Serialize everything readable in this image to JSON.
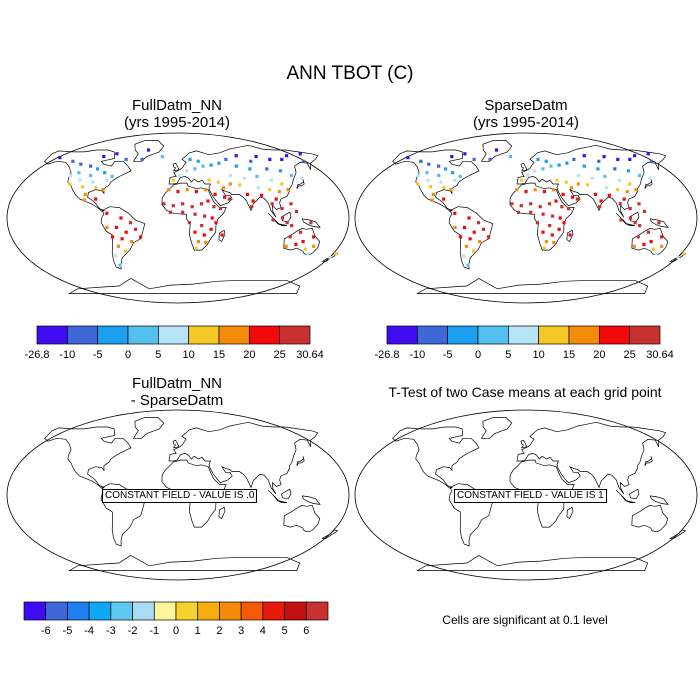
{
  "title": "ANN TBOT (C)",
  "panels": [
    {
      "id": "full",
      "title_lines": [
        "FullDatm_NN",
        "(yrs 1995-2014)"
      ]
    },
    {
      "id": "sparse",
      "title_lines": [
        "SparseDatm",
        "(yrs 1995-2014)"
      ]
    },
    {
      "id": "diff",
      "title_lines": [
        "FullDatm_NN",
        "- SparseDatm"
      ],
      "field_label": "CONSTANT FIELD - VALUE IS .0"
    },
    {
      "id": "ttest",
      "title_lines": [
        "T-Test of two Case means at each grid point"
      ],
      "field_label": "CONSTANT FIELD - VALUE IS 1"
    }
  ],
  "colorbar_temp": {
    "colors": [
      "#3f0cf2",
      "#3e68d8",
      "#1d9ff0",
      "#55c0f0",
      "#b6e3f5",
      "#f5c826",
      "#f48c0a",
      "#f20a0a",
      "#c93030"
    ],
    "labels": [
      "-26.8",
      "-10",
      "-5",
      "0",
      "5",
      "10",
      "15",
      "20",
      "25",
      "30.64"
    ]
  },
  "colorbar_diff": {
    "colors": [
      "#3f0cf2",
      "#3e68d8",
      "#1d7ff0",
      "#0fa8f5",
      "#5fc8f2",
      "#a8dcf5",
      "#fdf59c",
      "#f7d22c",
      "#f6ad10",
      "#f48a0a",
      "#f25a0a",
      "#e61a0a",
      "#c41010",
      "#c93030"
    ],
    "labels": [
      "-6",
      "-5",
      "-4",
      "-3",
      "-2",
      "-1",
      "0",
      "1",
      "2",
      "3",
      "4",
      "5",
      "6"
    ]
  },
  "significance_note": "Cells are significant at 0.1 level",
  "stations": [
    {
      "lon": -150,
      "lat": 64,
      "c": 0
    },
    {
      "lon": -130,
      "lat": 60,
      "c": 1
    },
    {
      "lon": -118,
      "lat": 57,
      "c": 1
    },
    {
      "lon": -105,
      "lat": 55,
      "c": 1
    },
    {
      "lon": -95,
      "lat": 52,
      "c": 2
    },
    {
      "lon": -85,
      "lat": 48,
      "c": 2
    },
    {
      "lon": -100,
      "lat": 45,
      "c": 3
    },
    {
      "lon": -115,
      "lat": 48,
      "c": 3
    },
    {
      "lon": -123,
      "lat": 45,
      "c": 4
    },
    {
      "lon": -110,
      "lat": 40,
      "c": 4
    },
    {
      "lon": -95,
      "lat": 38,
      "c": 4
    },
    {
      "lon": -80,
      "lat": 40,
      "c": 4
    },
    {
      "lon": -75,
      "lat": 44,
      "c": 3
    },
    {
      "lon": -120,
      "lat": 36,
      "c": 5
    },
    {
      "lon": -105,
      "lat": 33,
      "c": 5
    },
    {
      "lon": -90,
      "lat": 32,
      "c": 5
    },
    {
      "lon": -82,
      "lat": 30,
      "c": 6
    },
    {
      "lon": -100,
      "lat": 25,
      "c": 6
    },
    {
      "lon": -80,
      "lat": 68,
      "c": 0
    },
    {
      "lon": -65,
      "lat": 62,
      "c": 1
    },
    {
      "lon": -95,
      "lat": 65,
      "c": 0
    },
    {
      "lon": -88,
      "lat": 20,
      "c": 7
    },
    {
      "lon": -100,
      "lat": 19,
      "c": 6
    },
    {
      "lon": -75,
      "lat": 5,
      "c": 7
    },
    {
      "lon": -60,
      "lat": 0,
      "c": 7
    },
    {
      "lon": -50,
      "lat": -5,
      "c": 8
    },
    {
      "lon": -65,
      "lat": -10,
      "c": 7
    },
    {
      "lon": -45,
      "lat": -12,
      "c": 8
    },
    {
      "lon": -55,
      "lat": -15,
      "c": 7
    },
    {
      "lon": -40,
      "lat": -20,
      "c": 7
    },
    {
      "lon": -60,
      "lat": -22,
      "c": 7
    },
    {
      "lon": -50,
      "lat": -25,
      "c": 6
    },
    {
      "lon": -65,
      "lat": -30,
      "c": 6
    },
    {
      "lon": -58,
      "lat": -35,
      "c": 5
    },
    {
      "lon": -70,
      "lat": -40,
      "c": 4
    },
    {
      "lon": -70,
      "lat": -20,
      "c": 7
    },
    {
      "lon": -68,
      "lat": -50,
      "c": 3
    },
    {
      "lon": -75,
      "lat": -10,
      "c": 6
    },
    {
      "lon": -20,
      "lat": 65,
      "c": 3
    },
    {
      "lon": -45,
      "lat": 62,
      "c": 1
    },
    {
      "lon": -40,
      "lat": 72,
      "c": 0
    },
    {
      "lon": -5,
      "lat": 40,
      "c": 5
    },
    {
      "lon": 2,
      "lat": 45,
      "c": 4
    },
    {
      "lon": 10,
      "lat": 50,
      "c": 4
    },
    {
      "lon": 20,
      "lat": 52,
      "c": 3
    },
    {
      "lon": 25,
      "lat": 60,
      "c": 2
    },
    {
      "lon": 15,
      "lat": 62,
      "c": 2
    },
    {
      "lon": 30,
      "lat": 55,
      "c": 3
    },
    {
      "lon": 40,
      "lat": 56,
      "c": 2
    },
    {
      "lon": 50,
      "lat": 58,
      "c": 2
    },
    {
      "lon": 60,
      "lat": 62,
      "c": 1
    },
    {
      "lon": 75,
      "lat": 66,
      "c": 0
    },
    {
      "lon": 90,
      "lat": 60,
      "c": 1
    },
    {
      "lon": 100,
      "lat": 65,
      "c": 0
    },
    {
      "lon": 115,
      "lat": 62,
      "c": 0
    },
    {
      "lon": 130,
      "lat": 62,
      "c": 0
    },
    {
      "lon": 140,
      "lat": 66,
      "c": 0
    },
    {
      "lon": 155,
      "lat": 60,
      "c": 1
    },
    {
      "lon": 160,
      "lat": 68,
      "c": 0
    },
    {
      "lon": 70,
      "lat": 55,
      "c": 2
    },
    {
      "lon": 85,
      "lat": 52,
      "c": 2
    },
    {
      "lon": 105,
      "lat": 52,
      "c": 1
    },
    {
      "lon": 120,
      "lat": 50,
      "c": 2
    },
    {
      "lon": 130,
      "lat": 45,
      "c": 3
    },
    {
      "lon": 140,
      "lat": 42,
      "c": 4
    },
    {
      "lon": 60,
      "lat": 45,
      "c": 4
    },
    {
      "lon": 75,
      "lat": 42,
      "c": 4
    },
    {
      "lon": 90,
      "lat": 44,
      "c": 3
    },
    {
      "lon": 105,
      "lat": 40,
      "c": 4
    },
    {
      "lon": 115,
      "lat": 36,
      "c": 5
    },
    {
      "lon": 120,
      "lat": 30,
      "c": 6
    },
    {
      "lon": 110,
      "lat": 28,
      "c": 6
    },
    {
      "lon": 100,
      "lat": 30,
      "c": 5
    },
    {
      "lon": 88,
      "lat": 32,
      "c": 4
    },
    {
      "lon": 45,
      "lat": 38,
      "c": 5
    },
    {
      "lon": 35,
      "lat": 40,
      "c": 5
    },
    {
      "lon": 50,
      "lat": 32,
      "c": 6
    },
    {
      "lon": 58,
      "lat": 36,
      "c": 6
    },
    {
      "lon": 68,
      "lat": 35,
      "c": 5
    },
    {
      "lon": 40,
      "lat": 25,
      "c": 7
    },
    {
      "lon": 50,
      "lat": 22,
      "c": 7
    },
    {
      "lon": 75,
      "lat": 25,
      "c": 7
    },
    {
      "lon": 80,
      "lat": 18,
      "c": 7
    },
    {
      "lon": 78,
      "lat": 12,
      "c": 8
    },
    {
      "lon": 90,
      "lat": 24,
      "c": 7
    },
    {
      "lon": 100,
      "lat": 15,
      "c": 8
    },
    {
      "lon": 105,
      "lat": 20,
      "c": 7
    },
    {
      "lon": 110,
      "lat": 10,
      "c": 8
    },
    {
      "lon": 120,
      "lat": 15,
      "c": 8
    },
    {
      "lon": 125,
      "lat": 7,
      "c": 8
    },
    {
      "lon": 110,
      "lat": 0,
      "c": 8
    },
    {
      "lon": 100,
      "lat": -2,
      "c": 8
    },
    {
      "lon": 115,
      "lat": -5,
      "c": 8
    },
    {
      "lon": 120,
      "lat": -8,
      "c": 8
    },
    {
      "lon": 140,
      "lat": -5,
      "c": 8
    },
    {
      "lon": -10,
      "lat": 30,
      "c": 6
    },
    {
      "lon": 0,
      "lat": 28,
      "c": 7
    },
    {
      "lon": 10,
      "lat": 30,
      "c": 6
    },
    {
      "lon": 20,
      "lat": 28,
      "c": 7
    },
    {
      "lon": 30,
      "lat": 30,
      "c": 6
    },
    {
      "lon": -15,
      "lat": 15,
      "c": 8
    },
    {
      "lon": -5,
      "lat": 13,
      "c": 8
    },
    {
      "lon": 5,
      "lat": 15,
      "c": 8
    },
    {
      "lon": 15,
      "lat": 12,
      "c": 8
    },
    {
      "lon": 25,
      "lat": 15,
      "c": 8
    },
    {
      "lon": 32,
      "lat": 18,
      "c": 7
    },
    {
      "lon": 38,
      "lat": 12,
      "c": 8
    },
    {
      "lon": -8,
      "lat": 6,
      "c": 8
    },
    {
      "lon": 5,
      "lat": 6,
      "c": 8
    },
    {
      "lon": 18,
      "lat": 4,
      "c": 8
    },
    {
      "lon": 28,
      "lat": 2,
      "c": 8
    },
    {
      "lon": 36,
      "lat": 0,
      "c": 7
    },
    {
      "lon": 40,
      "lat": -5,
      "c": 7
    },
    {
      "lon": 12,
      "lat": -5,
      "c": 8
    },
    {
      "lon": 25,
      "lat": -8,
      "c": 8
    },
    {
      "lon": 35,
      "lat": -12,
      "c": 7
    },
    {
      "lon": 18,
      "lat": -15,
      "c": 7
    },
    {
      "lon": 28,
      "lat": -18,
      "c": 7
    },
    {
      "lon": 22,
      "lat": -25,
      "c": 6
    },
    {
      "lon": 30,
      "lat": -26,
      "c": 6
    },
    {
      "lon": 20,
      "lat": -32,
      "c": 5
    },
    {
      "lon": 47,
      "lat": -18,
      "c": 7
    },
    {
      "lon": 45,
      "lat": 10,
      "c": 8
    },
    {
      "lon": 55,
      "lat": 20,
      "c": 8
    },
    {
      "lon": 120,
      "lat": -20,
      "c": 8
    },
    {
      "lon": 130,
      "lat": -15,
      "c": 8
    },
    {
      "lon": 135,
      "lat": -25,
      "c": 7
    },
    {
      "lon": 145,
      "lat": -20,
      "c": 7
    },
    {
      "lon": 148,
      "lat": -30,
      "c": 6
    },
    {
      "lon": 140,
      "lat": -33,
      "c": 5
    },
    {
      "lon": 118,
      "lat": -30,
      "c": 6
    },
    {
      "lon": 128,
      "lat": -28,
      "c": 7
    },
    {
      "lon": 145,
      "lat": -38,
      "c": 4
    },
    {
      "lon": 172,
      "lat": -42,
      "c": 4
    },
    {
      "lon": 176,
      "lat": -38,
      "c": 5
    }
  ]
}
